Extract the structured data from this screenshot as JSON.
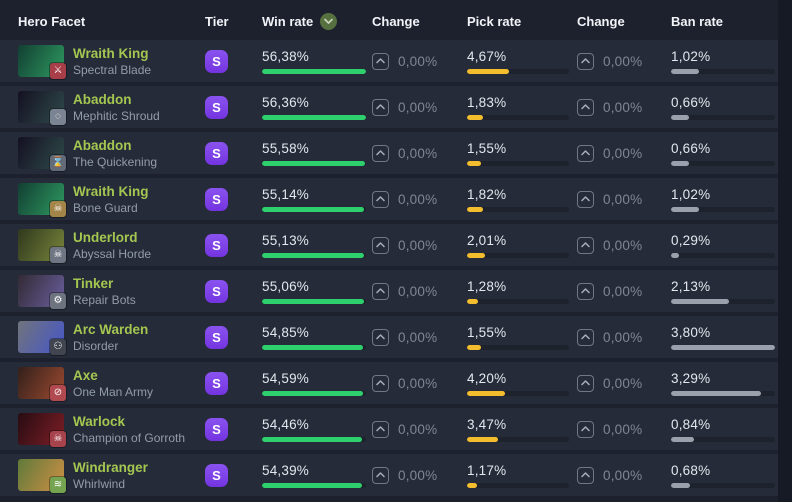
{
  "table": {
    "columns": {
      "hero": "Hero Facet",
      "tier": "Tier",
      "win": "Win rate",
      "change1": "Change",
      "pick": "Pick rate",
      "change2": "Change",
      "ban": "Ban rate"
    },
    "sort": {
      "column": "win",
      "direction": "desc"
    },
    "bar_scales": {
      "win_max": 56.38,
      "pick_max": 11.4,
      "ban_max": 3.8
    },
    "rows": [
      {
        "hero": "Wraith King",
        "facet": "Spectral Blade",
        "tier": "S",
        "win": "56,38%",
        "win_val": 56.38,
        "win_change": "0,00%",
        "pick": "4,67%",
        "pick_val": 4.67,
        "pick_change": "0,00%",
        "ban": "1,02%",
        "ban_val": 1.02,
        "facet_icon": "sword-icon",
        "facet_glyph": "⚔",
        "facet_bg": "#a83e47",
        "portrait_colors": [
          "#123f33",
          "#2e9a60"
        ]
      },
      {
        "hero": "Abaddon",
        "facet": "Mephitic Shroud",
        "tier": "S",
        "win": "56,36%",
        "win_val": 56.36,
        "win_change": "0,00%",
        "pick": "1,83%",
        "pick_val": 1.83,
        "pick_change": "0,00%",
        "ban": "0,66%",
        "ban_val": 0.66,
        "facet_icon": "shroud-circle-icon",
        "facet_glyph": "◌",
        "facet_bg": "#7b8492",
        "portrait_colors": [
          "#141021",
          "#2f4b4b"
        ]
      },
      {
        "hero": "Abaddon",
        "facet": "The Quickening",
        "tier": "S",
        "win": "55,58%",
        "win_val": 55.58,
        "win_change": "0,00%",
        "pick": "1,55%",
        "pick_val": 1.55,
        "pick_change": "0,00%",
        "ban": "0,66%",
        "ban_val": 0.66,
        "facet_icon": "hourglass-icon",
        "facet_glyph": "⌛",
        "facet_bg": "#636b79",
        "portrait_colors": [
          "#141021",
          "#2f4b4b"
        ]
      },
      {
        "hero": "Wraith King",
        "facet": "Bone Guard",
        "tier": "S",
        "win": "55,14%",
        "win_val": 55.14,
        "win_change": "0,00%",
        "pick": "1,82%",
        "pick_val": 1.82,
        "pick_change": "0,00%",
        "ban": "1,02%",
        "ban_val": 1.02,
        "facet_icon": "skull-icon",
        "facet_glyph": "☠",
        "facet_bg": "#a3854a",
        "portrait_colors": [
          "#123f33",
          "#2e9a60"
        ]
      },
      {
        "hero": "Underlord",
        "facet": "Abyssal Horde",
        "tier": "S",
        "win": "55,13%",
        "win_val": 55.13,
        "win_change": "0,00%",
        "pick": "2,01%",
        "pick_val": 2.01,
        "pick_change": "0,00%",
        "ban": "0,29%",
        "ban_val": 0.29,
        "facet_icon": "horde-skull-icon",
        "facet_glyph": "☠",
        "facet_bg": "#6f7683",
        "portrait_colors": [
          "#2f381c",
          "#78863c"
        ]
      },
      {
        "hero": "Tinker",
        "facet": "Repair Bots",
        "tier": "S",
        "win": "55,06%",
        "win_val": 55.06,
        "win_change": "0,00%",
        "pick": "1,28%",
        "pick_val": 1.28,
        "pick_change": "0,00%",
        "ban": "2,13%",
        "ban_val": 2.13,
        "facet_icon": "robot-icon",
        "facet_glyph": "⚙",
        "facet_bg": "#6d7480",
        "portrait_colors": [
          "#322a34",
          "#6a5f9e"
        ]
      },
      {
        "hero": "Arc Warden",
        "facet": "Disorder",
        "tier": "S",
        "win": "54,85%",
        "win_val": 54.85,
        "win_change": "0,00%",
        "pick": "1,55%",
        "pick_val": 1.55,
        "pick_change": "0,00%",
        "ban": "3,80%",
        "ban_val": 3.8,
        "facet_icon": "disorder-creature-icon",
        "facet_glyph": "⚇",
        "facet_bg": "#40454f",
        "portrait_colors": [
          "#70747c",
          "#4656c8"
        ]
      },
      {
        "hero": "Axe",
        "facet": "One Man Army",
        "tier": "S",
        "win": "54,59%",
        "win_val": 54.59,
        "win_change": "0,00%",
        "pick": "4,20%",
        "pick_val": 4.2,
        "pick_change": "0,00%",
        "ban": "3,29%",
        "ban_val": 3.29,
        "facet_icon": "one-man-army-icon",
        "facet_glyph": "⊘",
        "facet_bg": "#b04a50",
        "portrait_colors": [
          "#33201b",
          "#9c4a30"
        ]
      },
      {
        "hero": "Warlock",
        "facet": "Champion of Gorroth",
        "tier": "S",
        "win": "54,46%",
        "win_val": 54.46,
        "win_change": "0,00%",
        "pick": "3,47%",
        "pick_val": 3.47,
        "pick_change": "0,00%",
        "ban": "0,84%",
        "ban_val": 0.84,
        "facet_icon": "gorroth-skull-icon",
        "facet_glyph": "☠",
        "facet_bg": "#a6434c",
        "portrait_colors": [
          "#270c12",
          "#7e1e26"
        ]
      },
      {
        "hero": "Windranger",
        "facet": "Whirlwind",
        "tier": "S",
        "win": "54,39%",
        "win_val": 54.39,
        "win_change": "0,00%",
        "pick": "1,17%",
        "pick_val": 1.17,
        "pick_change": "0,00%",
        "ban": "0,68%",
        "ban_val": 0.68,
        "facet_icon": "whirlwind-icon",
        "facet_glyph": "≋",
        "facet_bg": "#74a450",
        "portrait_colors": [
          "#5f7a3a",
          "#cf8f45"
        ]
      }
    ]
  },
  "colors": {
    "win_bar": "#2ed06e",
    "pick_bar": "#f4bd2e",
    "ban_bar": "#9ba1ac",
    "tier_badge": "#7c3bf0",
    "hero_link": "#a4c751",
    "sort_badge_bg": "#57703f",
    "row_bg": "#252b38",
    "page_bg": "#1c212d"
  }
}
